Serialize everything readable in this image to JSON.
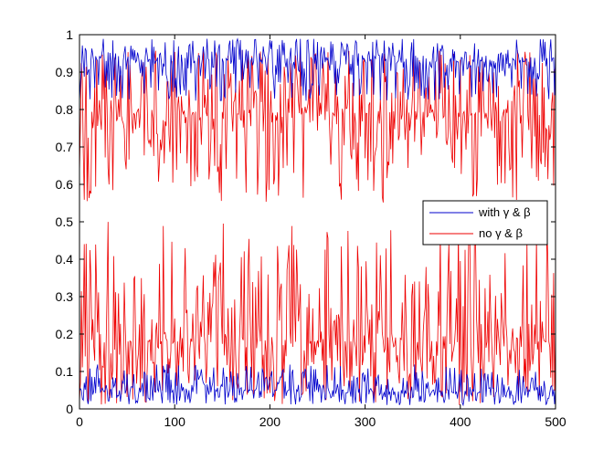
{
  "chart_data": {
    "type": "line",
    "title": "",
    "xlabel": "",
    "ylabel": "",
    "xlim": [
      0,
      500
    ],
    "ylim": [
      0,
      1
    ],
    "xticks": [
      "0",
      "100",
      "200",
      "300",
      "400",
      "500"
    ],
    "yticks": [
      "0",
      "0.1",
      "0.2",
      "0.3",
      "0.4",
      "0.5",
      "0.6",
      "0.7",
      "0.8",
      "0.9",
      "1"
    ],
    "grid": false,
    "legend_position": "right",
    "series": [
      {
        "name": "with γ & β",
        "color": "#0000cc",
        "bands": [
          {
            "range": [
              0.82,
              0.99
            ],
            "center": 0.93,
            "note": "upper cluster"
          },
          {
            "range": [
              0.01,
              0.12
            ],
            "center": 0.05,
            "note": "lower cluster"
          }
        ],
        "x_count": 501
      },
      {
        "name": "no γ & β",
        "color": "#ee0000",
        "bands": [
          {
            "range": [
              0.55,
              0.96
            ],
            "center": 0.79,
            "note": "upper cluster"
          },
          {
            "range": [
              0.01,
              0.5
            ],
            "center": 0.18,
            "note": "lower cluster"
          }
        ],
        "x_count": 501
      }
    ]
  }
}
